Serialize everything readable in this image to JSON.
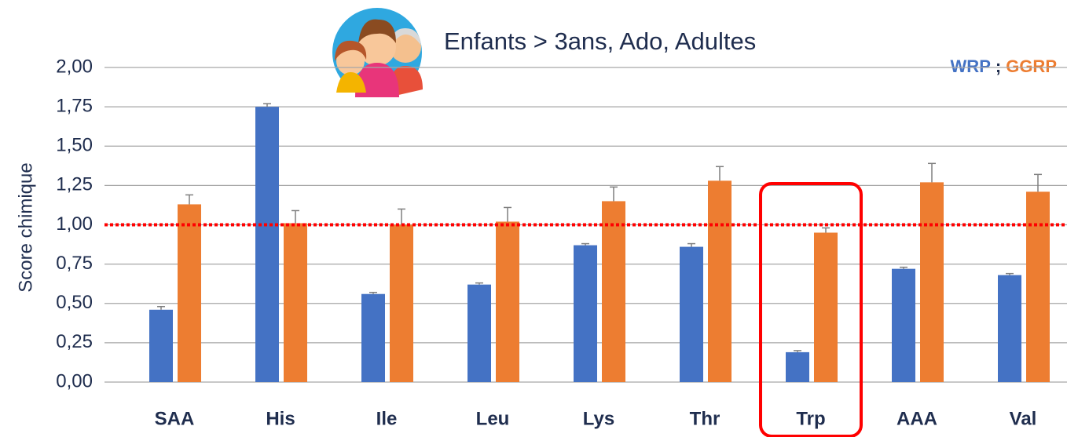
{
  "chart_data": {
    "type": "bar",
    "title": "Enfants > 3ans, Ado, Adultes",
    "y_label": "Score chimique",
    "categories": [
      "SAA",
      "His",
      "Ile",
      "Leu",
      "Lys",
      "Thr",
      "Trp",
      "AAA",
      "Val"
    ],
    "series": [
      {
        "name": "WRP",
        "color": "#4472c4",
        "values": [
          0.46,
          1.75,
          0.56,
          0.62,
          0.87,
          0.86,
          0.19,
          0.72,
          0.68
        ],
        "errors": [
          0.02,
          0.02,
          0.01,
          0.01,
          0.01,
          0.02,
          0.01,
          0.01,
          0.01
        ]
      },
      {
        "name": "GGRP",
        "color": "#ed7d31",
        "values": [
          1.13,
          1.01,
          1.0,
          1.02,
          1.15,
          1.28,
          0.95,
          1.27,
          1.21
        ],
        "errors": [
          0.06,
          0.08,
          0.1,
          0.09,
          0.09,
          0.09,
          0.03,
          0.12,
          0.11
        ]
      }
    ],
    "legend_separator": ";",
    "ylim": [
      0,
      2
    ],
    "yticks": [
      {
        "value": 0,
        "label": "0,00"
      },
      {
        "value": 0.25,
        "label": "0,25"
      },
      {
        "value": 0.5,
        "label": "0,50"
      },
      {
        "value": 0.75,
        "label": "0,75"
      },
      {
        "value": 1,
        "label": "1,00"
      },
      {
        "value": 1.25,
        "label": "1,25"
      },
      {
        "value": 1.5,
        "label": "1,50"
      },
      {
        "value": 1.75,
        "label": "1,75"
      },
      {
        "value": 2,
        "label": "2,00"
      }
    ],
    "grid": true,
    "reference_line": {
      "value": 1,
      "color": "#ff0000"
    },
    "highlight": {
      "category_index": 6,
      "color": "#ff0000"
    }
  }
}
